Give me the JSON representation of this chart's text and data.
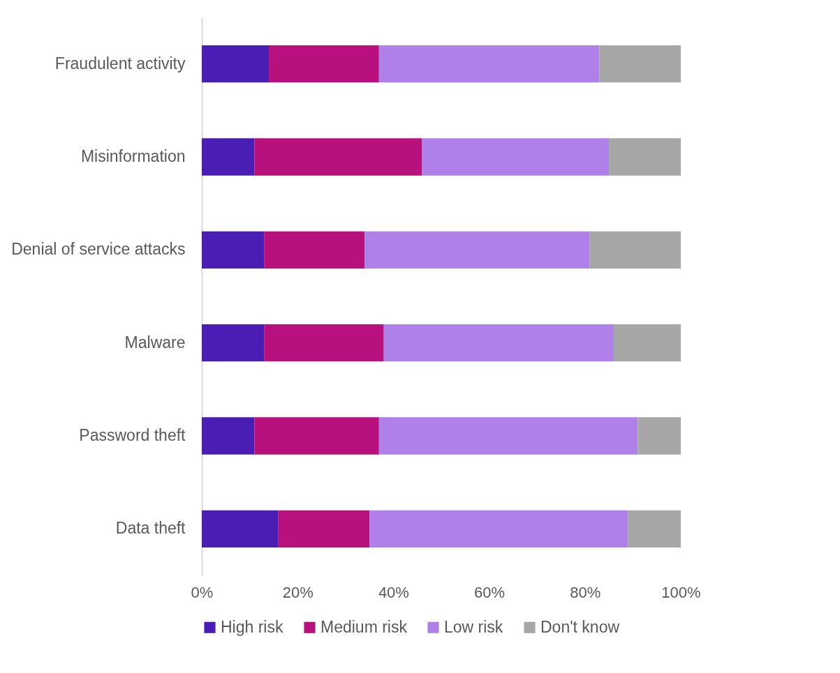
{
  "chart_data": {
    "type": "bar",
    "orientation": "horizontal",
    "stacked": true,
    "categories": [
      "Fraudulent activity",
      "Misinformation",
      "Denial of service attacks",
      "Malware",
      "Password theft",
      "Data theft"
    ],
    "series": [
      {
        "name": "High risk",
        "color": "#4a1db5",
        "values": [
          14,
          11,
          13,
          13,
          11,
          16
        ]
      },
      {
        "name": "Medium risk",
        "color": "#b8107c",
        "values": [
          23,
          35,
          21,
          25,
          26,
          19
        ]
      },
      {
        "name": "Low risk",
        "color": "#ae80e8",
        "values": [
          46,
          39,
          47,
          48,
          54,
          54
        ]
      },
      {
        "name": "Don't know",
        "color": "#a6a6a6",
        "values": [
          17,
          15,
          19,
          14,
          9,
          11
        ]
      }
    ],
    "xlim": [
      0,
      100
    ],
    "xticks": [
      {
        "value": 0,
        "label": "0%"
      },
      {
        "value": 20,
        "label": "20%"
      },
      {
        "value": 40,
        "label": "40%"
      },
      {
        "value": 60,
        "label": "60%"
      },
      {
        "value": 80,
        "label": "80%"
      },
      {
        "value": 100,
        "label": "100%"
      }
    ],
    "grid": false,
    "legend": "bottom"
  }
}
